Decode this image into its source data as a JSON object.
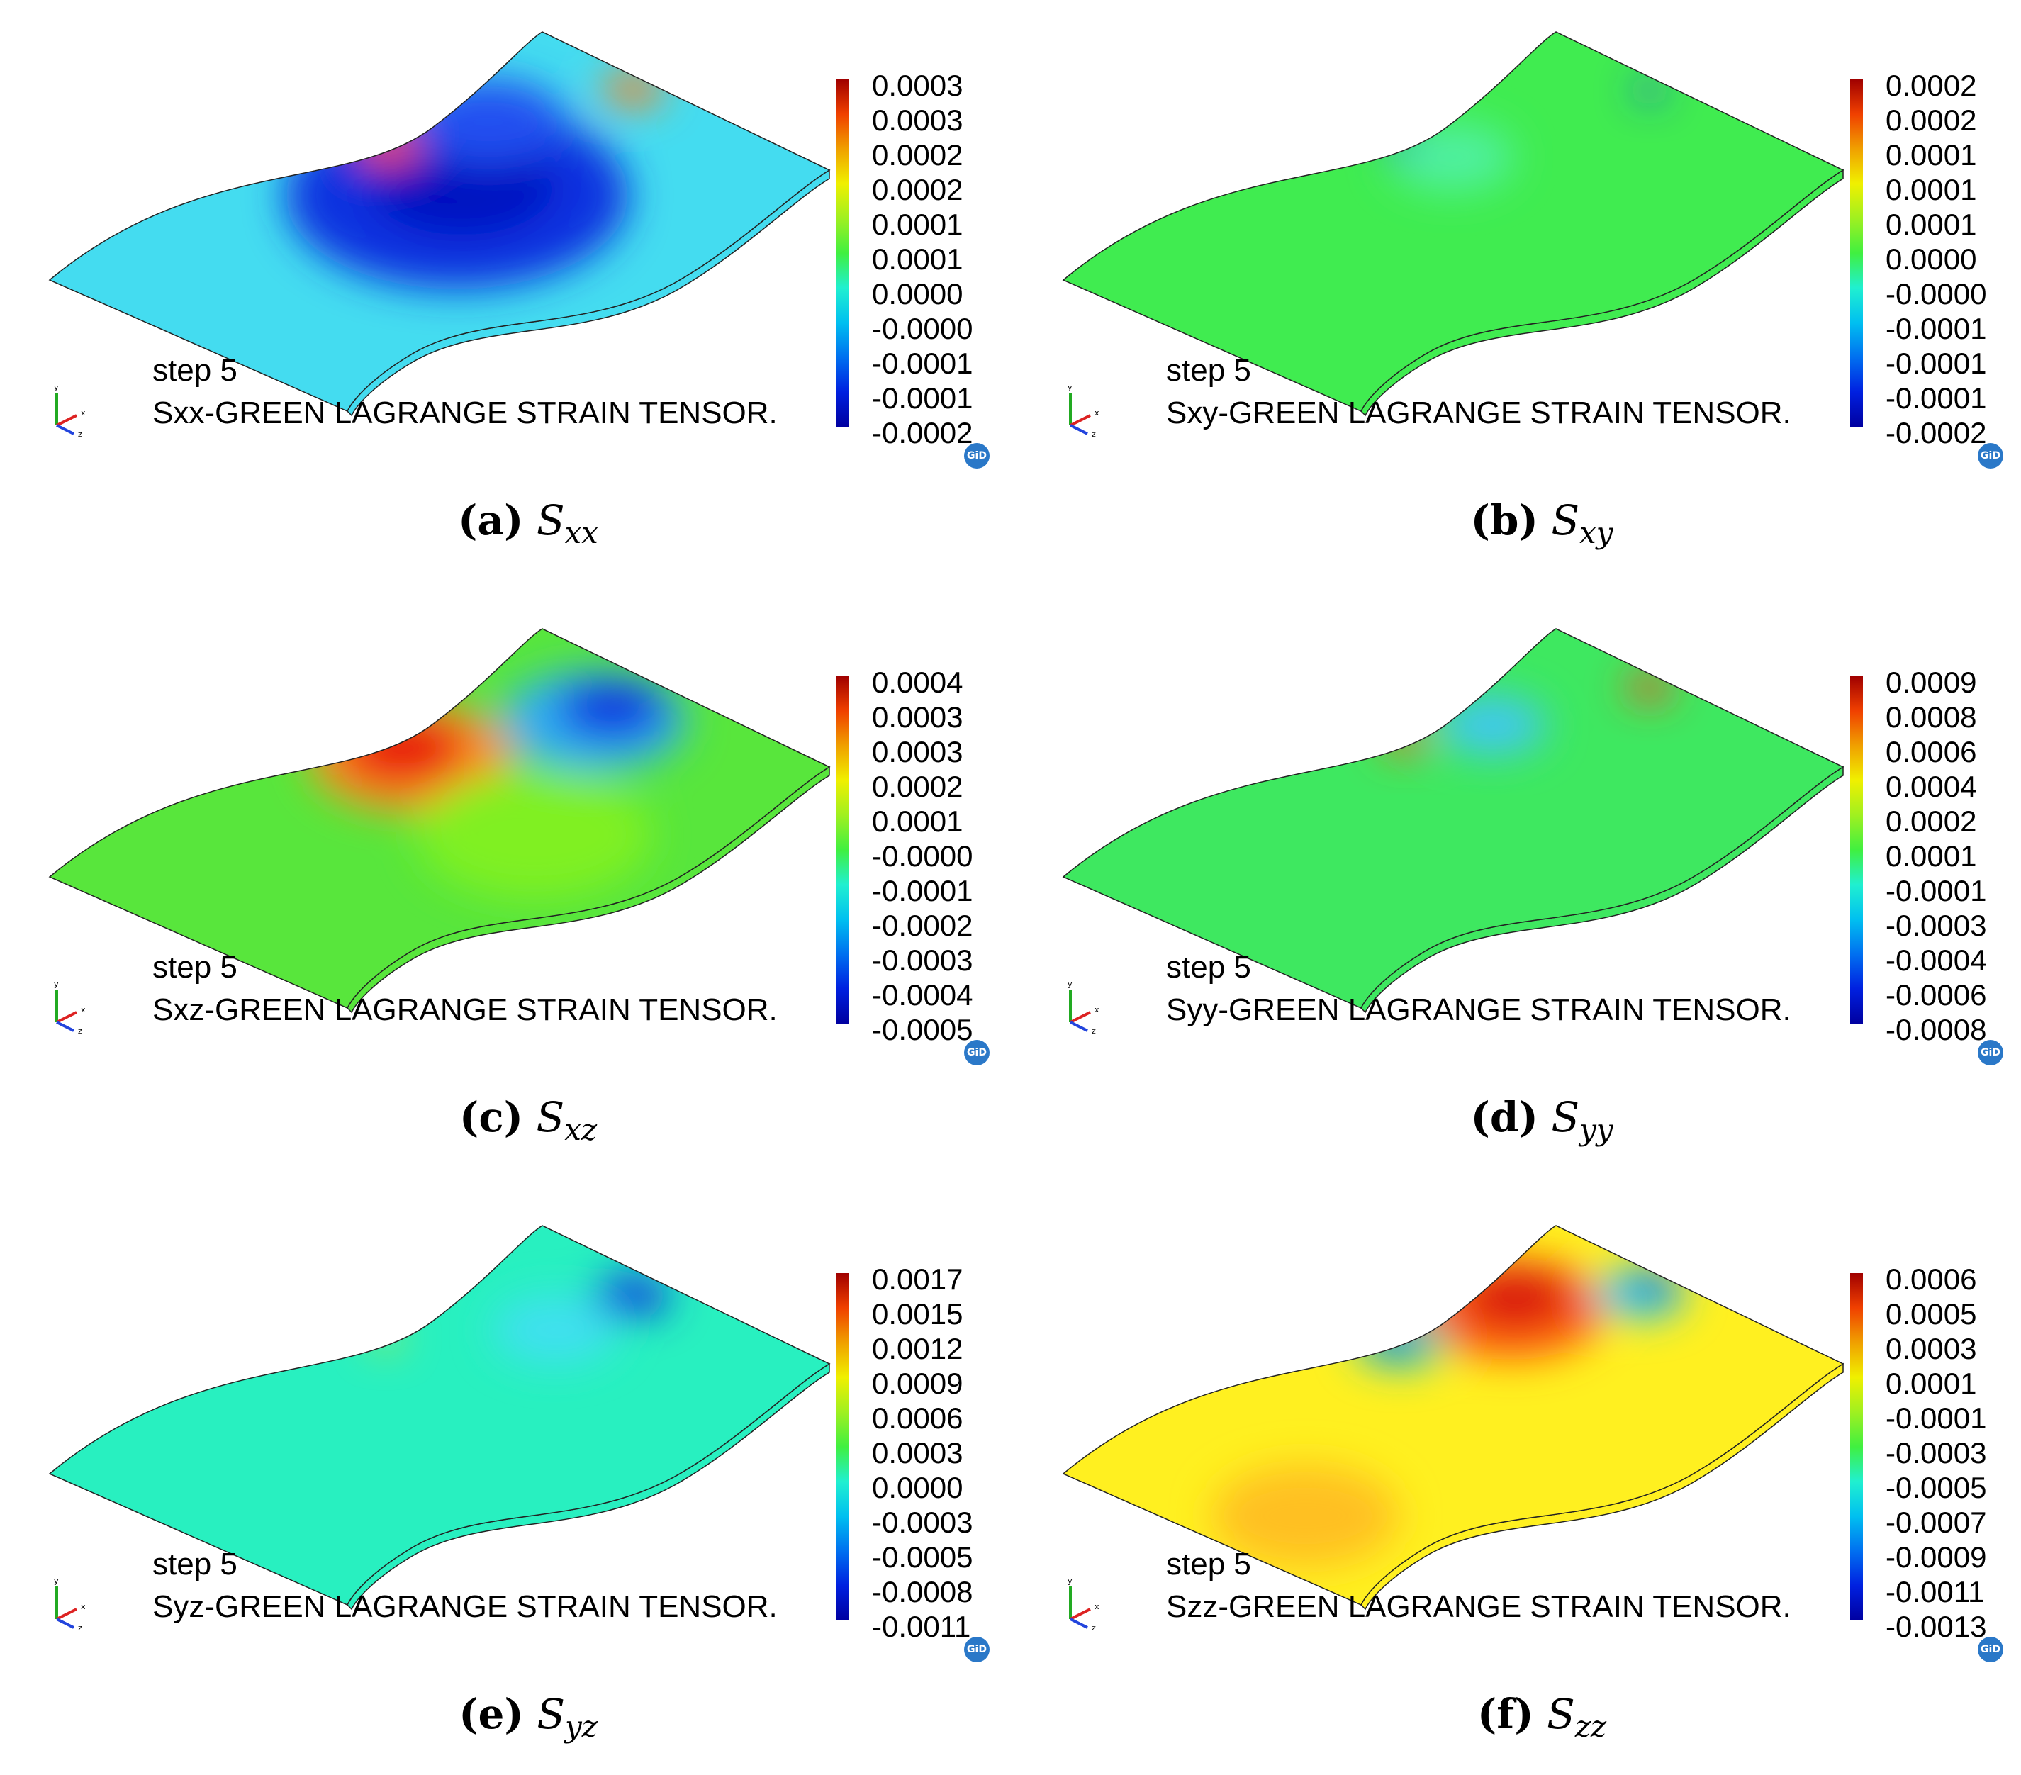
{
  "panels": [
    {
      "step": "step 5",
      "title": "Sxx-GREEN LAGRANGE STRAIN TENSOR.",
      "ticks": [
        "0.0003",
        "0.0003",
        "0.0002",
        "0.0002",
        "0.0001",
        "0.0001",
        "0.0000",
        "-0.0000",
        "-0.0001",
        "-0.0001",
        "-0.0002"
      ],
      "caption_letter": "(a)",
      "caption_symbol": "S",
      "caption_sub": "xx",
      "base_color": "#44dcf0",
      "blobs": [
        {
          "u": 0.62,
          "v": 0.35,
          "r": 0.22,
          "color": "#1030e0"
        },
        {
          "u": 0.66,
          "v": 0.3,
          "r": 0.12,
          "color": "#0010c0"
        },
        {
          "u": 0.82,
          "v": 0.12,
          "r": 0.1,
          "color": "#2050f0"
        },
        {
          "u": 0.67,
          "v": 0.03,
          "r": 0.04,
          "color": "#ff5020"
        },
        {
          "u": 0.98,
          "v": 0.35,
          "r": 0.04,
          "color": "#ff8020"
        }
      ]
    },
    {
      "step": "step 5",
      "title": "Sxy-GREEN LAGRANGE STRAIN TENSOR.",
      "ticks": [
        "0.0002",
        "0.0002",
        "0.0001",
        "0.0001",
        "0.0001",
        "0.0000",
        "-0.0000",
        "-0.0001",
        "-0.0001",
        "-0.0001",
        "-0.0002"
      ],
      "caption_letter": "(b)",
      "caption_symbol": "S",
      "caption_sub": "xy",
      "base_color": "#40ec50",
      "blobs": [
        {
          "u": 0.7,
          "v": 0.15,
          "r": 0.08,
          "color": "#50f0a0"
        },
        {
          "u": 0.98,
          "v": 0.36,
          "r": 0.02,
          "color": "#2040f0"
        },
        {
          "u": 0.67,
          "v": 0.02,
          "r": 0.02,
          "color": "#2040e0"
        }
      ]
    },
    {
      "step": "step 5",
      "title": "Sxz-GREEN LAGRANGE STRAIN TENSOR.",
      "ticks": [
        "0.0004",
        "0.0003",
        "0.0003",
        "0.0002",
        "0.0001",
        "-0.0000",
        "-0.0001",
        "-0.0002",
        "-0.0003",
        "-0.0004",
        "-0.0005"
      ],
      "caption_letter": "(c)",
      "caption_symbol": "S",
      "caption_sub": "xz",
      "base_color": "#58e63c",
      "blobs": [
        {
          "u": 0.66,
          "v": 0.12,
          "r": 0.13,
          "color": "#ff9020"
        },
        {
          "u": 0.67,
          "v": 0.08,
          "r": 0.08,
          "color": "#e81010"
        },
        {
          "u": 0.9,
          "v": 0.35,
          "r": 0.12,
          "color": "#30b0f0"
        },
        {
          "u": 0.93,
          "v": 0.36,
          "r": 0.07,
          "color": "#1030e0"
        },
        {
          "u": 0.6,
          "v": 0.65,
          "r": 0.15,
          "color": "#80f020"
        }
      ]
    },
    {
      "step": "step 5",
      "title": "Syy-GREEN LAGRANGE STRAIN TENSOR.",
      "ticks": [
        "0.0009",
        "0.0008",
        "0.0006",
        "0.0004",
        "0.0002",
        "0.0001",
        "-0.0001",
        "-0.0003",
        "-0.0004",
        "-0.0006",
        "-0.0008"
      ],
      "caption_letter": "(d)",
      "caption_symbol": "S",
      "caption_sub": "yy",
      "base_color": "#3ee860",
      "blobs": [
        {
          "u": 0.8,
          "v": 0.12,
          "r": 0.07,
          "color": "#40c8f0"
        },
        {
          "u": 0.68,
          "v": 0.02,
          "r": 0.03,
          "color": "#ff6020"
        },
        {
          "u": 0.98,
          "v": 0.36,
          "r": 0.03,
          "color": "#ff4020"
        }
      ]
    },
    {
      "step": "step 5",
      "title": "Syz-GREEN LAGRANGE STRAIN TENSOR.",
      "ticks": [
        "0.0017",
        "0.0015",
        "0.0012",
        "0.0009",
        "0.0006",
        "0.0003",
        "0.0000",
        "-0.0003",
        "-0.0005",
        "-0.0008",
        "-0.0011"
      ],
      "caption_letter": "(e)",
      "caption_symbol": "S",
      "caption_sub": "yz",
      "base_color": "#28f0c0",
      "blobs": [
        {
          "u": 0.96,
          "v": 0.38,
          "r": 0.05,
          "color": "#1040e0"
        },
        {
          "u": 0.85,
          "v": 0.3,
          "r": 0.08,
          "color": "#40e0f0"
        },
        {
          "u": 0.67,
          "v": 0.02,
          "r": 0.02,
          "color": "#f0e020"
        }
      ]
    },
    {
      "step": "step 5",
      "title": "Szz-GREEN LAGRANGE STRAIN TENSOR.",
      "ticks": [
        "0.0006",
        "0.0005",
        "0.0003",
        "0.0001",
        "-0.0001",
        "-0.0003",
        "-0.0005",
        "-0.0007",
        "-0.0009",
        "-0.0011",
        "-0.0013"
      ],
      "caption_letter": "(f)",
      "caption_symbol": "S",
      "caption_sub": "zz",
      "base_color": "#fff020",
      "blobs": [
        {
          "u": 0.84,
          "v": 0.12,
          "r": 0.12,
          "color": "#ff6010"
        },
        {
          "u": 0.86,
          "v": 0.1,
          "r": 0.07,
          "color": "#d81010"
        },
        {
          "u": 0.66,
          "v": 0.04,
          "r": 0.06,
          "color": "#30d0c0"
        },
        {
          "u": 0.66,
          "v": 0.02,
          "r": 0.03,
          "color": "#1030e0"
        },
        {
          "u": 0.96,
          "v": 0.36,
          "r": 0.06,
          "color": "#30d0f0"
        },
        {
          "u": 0.98,
          "v": 0.37,
          "r": 0.03,
          "color": "#1030e0"
        },
        {
          "u": 0.1,
          "v": 0.65,
          "r": 0.12,
          "color": "#ffc020"
        }
      ]
    }
  ],
  "logo_text": "GiD",
  "axis_labels": {
    "x": "x",
    "y": "y",
    "z": "z"
  }
}
